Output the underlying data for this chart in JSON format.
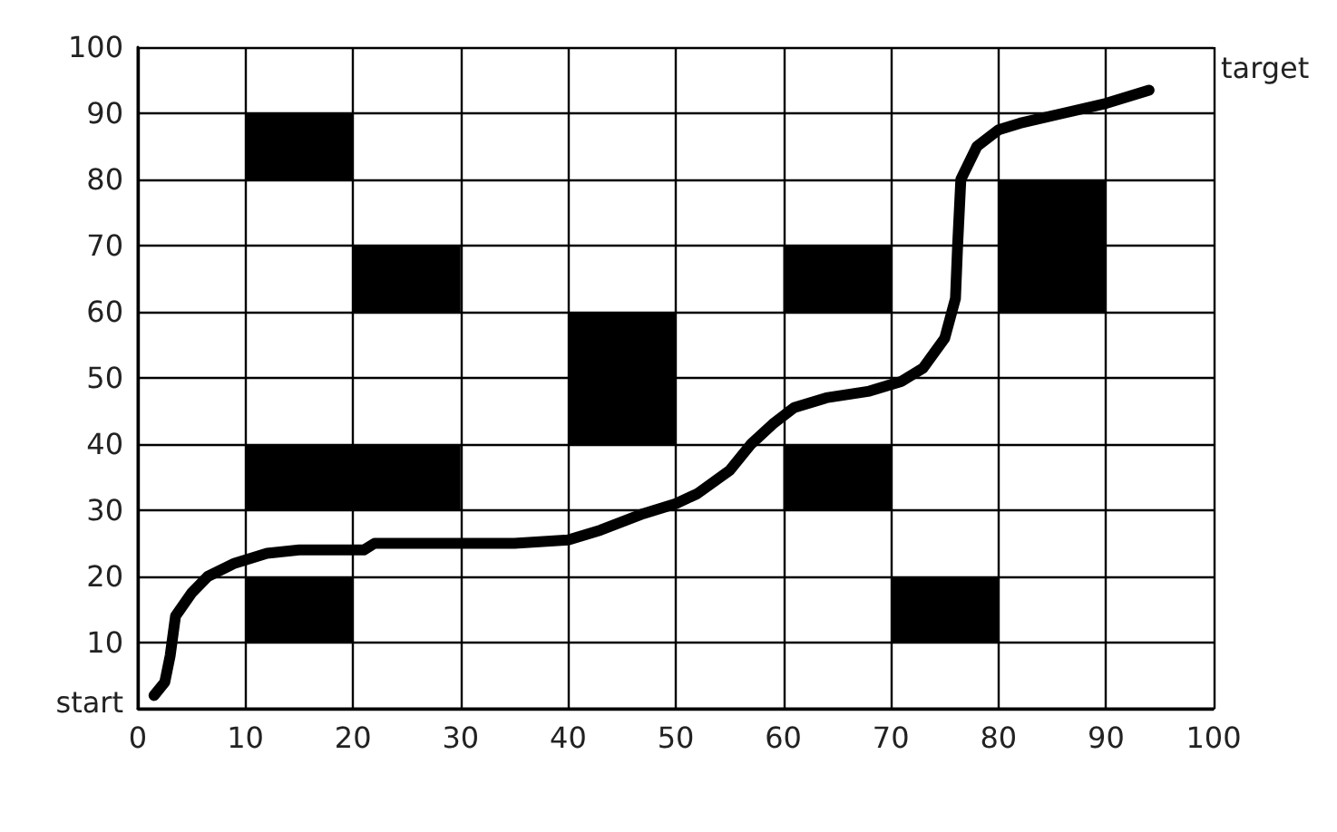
{
  "chart_data": {
    "type": "line",
    "xlim": [
      0,
      100
    ],
    "ylim": [
      0,
      100
    ],
    "xticks": [
      0,
      10,
      20,
      30,
      40,
      50,
      60,
      70,
      80,
      90,
      100
    ],
    "yticks": [
      {
        "value": 0,
        "label": null
      },
      10,
      20,
      30,
      40,
      50,
      60,
      70,
      80,
      90,
      100
    ],
    "grid": true,
    "marker": "none",
    "line_style": "solid",
    "series": [
      {
        "type": "bar",
        "color": "#000000",
        "x": [
          15,
          25,
          45,
          65,
          75,
          85
        ],
        "base": [
          10,
          30,
          40,
          30,
          10,
          60
        ],
        "values": [
          10,
          10,
          20,
          10,
          10,
          20
        ]
      },
      {
        "type": "bar",
        "color": "#000000",
        "x": [
          15,
          25,
          65
        ],
        "base": [
          30,
          60,
          60
        ],
        "values": [
          10,
          10,
          10
        ]
      },
      {
        "type": "bar",
        "color": "#000000",
        "x": [
          15
        ],
        "base": [
          80
        ],
        "values": [
          10
        ]
      },
      {
        "color": "#000000",
        "x": [
          1.5,
          2.5,
          3,
          3.5,
          5,
          6.5,
          9,
          12,
          15,
          21,
          22,
          30,
          35,
          40,
          43,
          47,
          50,
          52,
          55,
          57,
          59,
          61,
          64,
          68,
          71,
          73,
          75,
          76,
          76.2,
          76.5,
          78,
          80,
          82,
          86,
          90,
          94
        ],
        "values": [
          2,
          4,
          8,
          14,
          17.5,
          20,
          22,
          23.5,
          24,
          24,
          25,
          25,
          25,
          25.5,
          27,
          29.5,
          31,
          32.5,
          36,
          40,
          43,
          45.5,
          47,
          48,
          49.5,
          51.5,
          56,
          62,
          70,
          80,
          85,
          87.5,
          88.5,
          90,
          91.5,
          93.5
        ]
      }
    ],
    "annotations": [
      "start",
      "target"
    ]
  }
}
